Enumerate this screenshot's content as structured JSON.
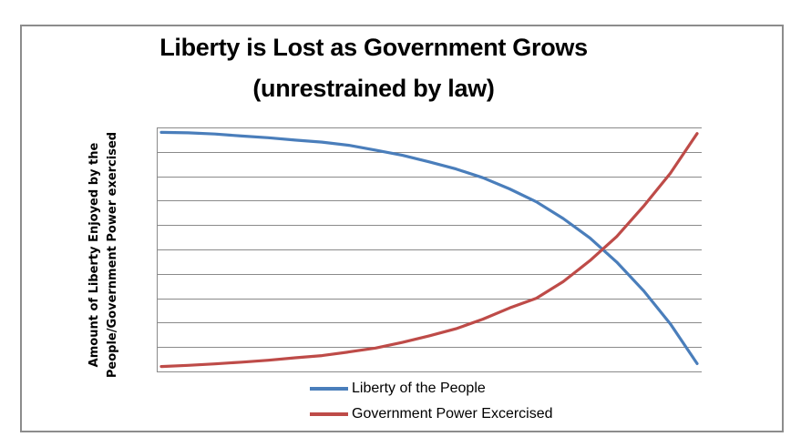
{
  "chart_data": {
    "type": "line",
    "title": "Liberty is Lost as Government Grows",
    "subtitle": "(unrestrained by law)",
    "xlabel": "",
    "ylabel_lines": [
      "Amount of Liberty Enjoyed by the",
      "People/Government Power exercised"
    ],
    "x": [
      0,
      1,
      2,
      3,
      4,
      5,
      6,
      7,
      8,
      9,
      10,
      11,
      12,
      13,
      14,
      15,
      16,
      17,
      18,
      19,
      20
    ],
    "xlim": [
      0,
      20
    ],
    "ylim": [
      0,
      10
    ],
    "grid": true,
    "gridlines": 10,
    "legend_position": "bottom",
    "series": [
      {
        "name": "Liberty of the People",
        "color": "#4a7ebb",
        "values": [
          9.8,
          9.78,
          9.73,
          9.65,
          9.58,
          9.48,
          9.4,
          9.27,
          9.07,
          8.86,
          8.59,
          8.3,
          7.94,
          7.48,
          6.95,
          6.27,
          5.47,
          4.48,
          3.31,
          1.95,
          0.32
        ]
      },
      {
        "name": "Government Power Excercised",
        "color": "#be4b48",
        "values": [
          0.2,
          0.25,
          0.31,
          0.38,
          0.46,
          0.56,
          0.65,
          0.8,
          0.96,
          1.19,
          1.46,
          1.75,
          2.14,
          2.6,
          3.0,
          3.68,
          4.54,
          5.53,
          6.77,
          8.12,
          9.75
        ]
      }
    ]
  }
}
